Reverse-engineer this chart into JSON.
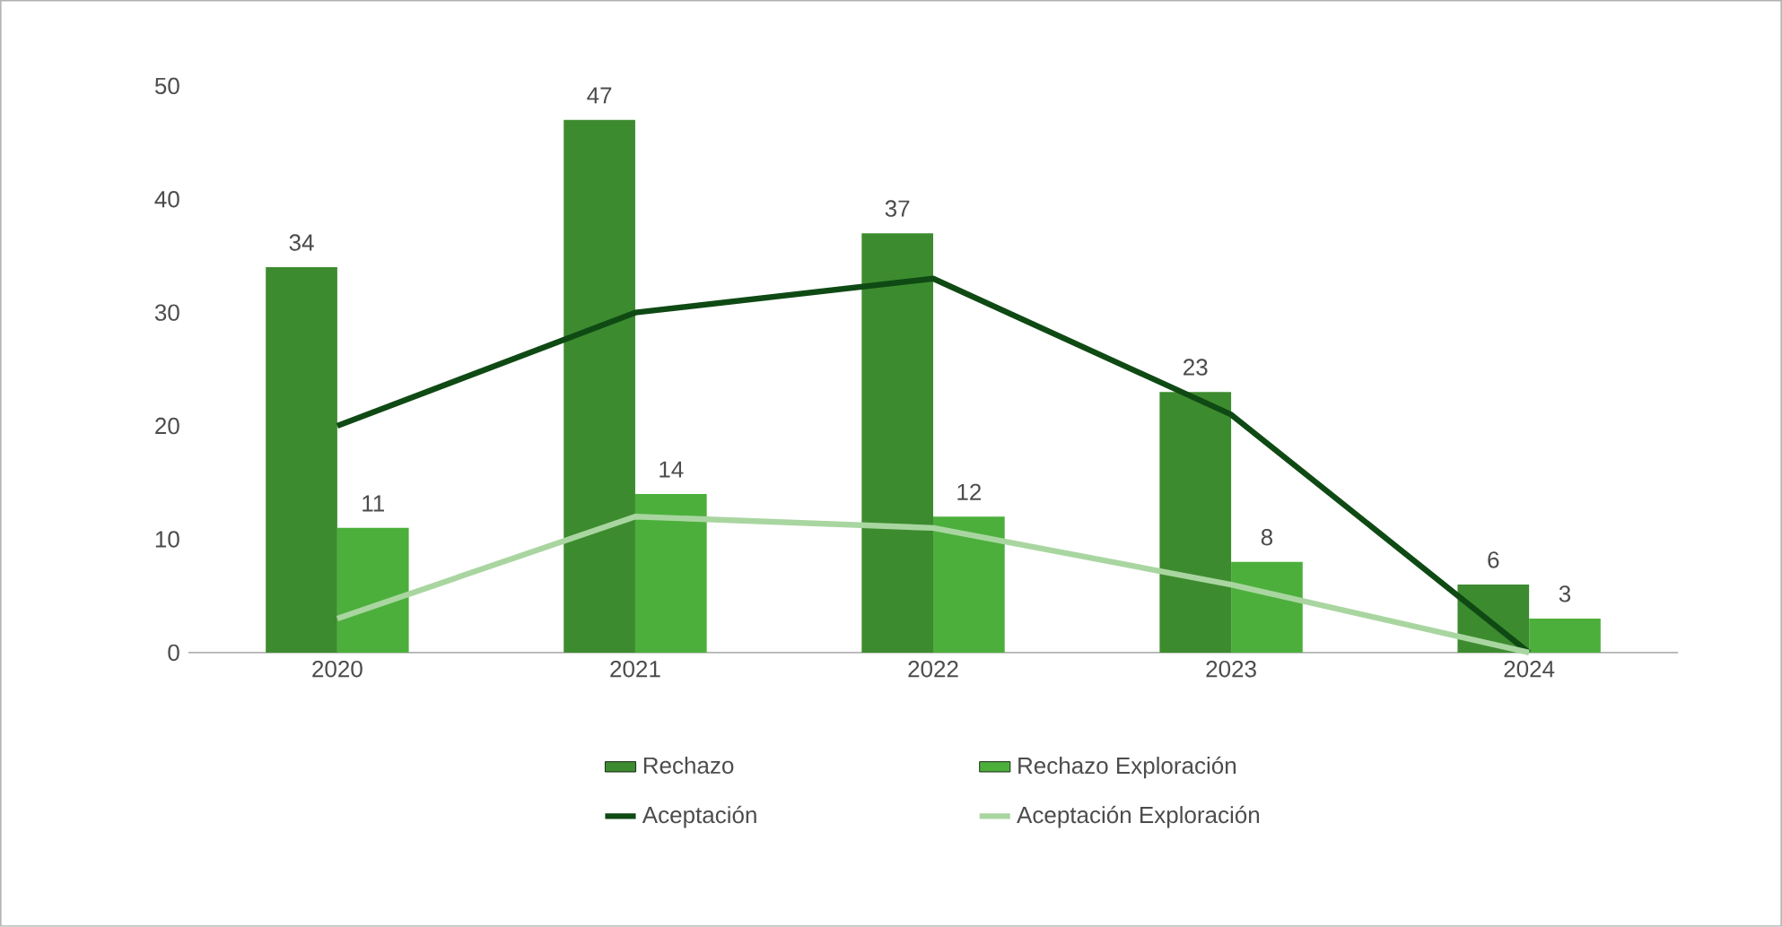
{
  "chart_data": {
    "type": "bar",
    "categories": [
      "2020",
      "2021",
      "2022",
      "2023",
      "2024"
    ],
    "series": [
      {
        "name": "Rechazo",
        "color": "#3d8b2f",
        "values": [
          34,
          47,
          37,
          23,
          6
        ],
        "value_labels": [
          "34",
          "47",
          "37",
          "23",
          "6"
        ]
      },
      {
        "name": "Rechazo Exploración",
        "color": "#4caf3c",
        "values": [
          11,
          14,
          12,
          8,
          3
        ],
        "value_labels": [
          "11",
          "14",
          "12",
          "8",
          "3"
        ]
      },
      {
        "name": "Aceptación",
        "type": "line",
        "color": "#0f4a14",
        "values": [
          20,
          30,
          33,
          21,
          0
        ]
      },
      {
        "name": "Aceptación Exploración",
        "type": "line",
        "color": "#a9d6a0",
        "values": [
          3,
          12,
          11,
          6,
          0
        ]
      }
    ],
    "ylim": [
      0,
      50
    ],
    "yticks": [
      0,
      10,
      20,
      30,
      40,
      50
    ],
    "grid": false,
    "legend": "bottom",
    "marker": "none",
    "line_style": "solid"
  }
}
